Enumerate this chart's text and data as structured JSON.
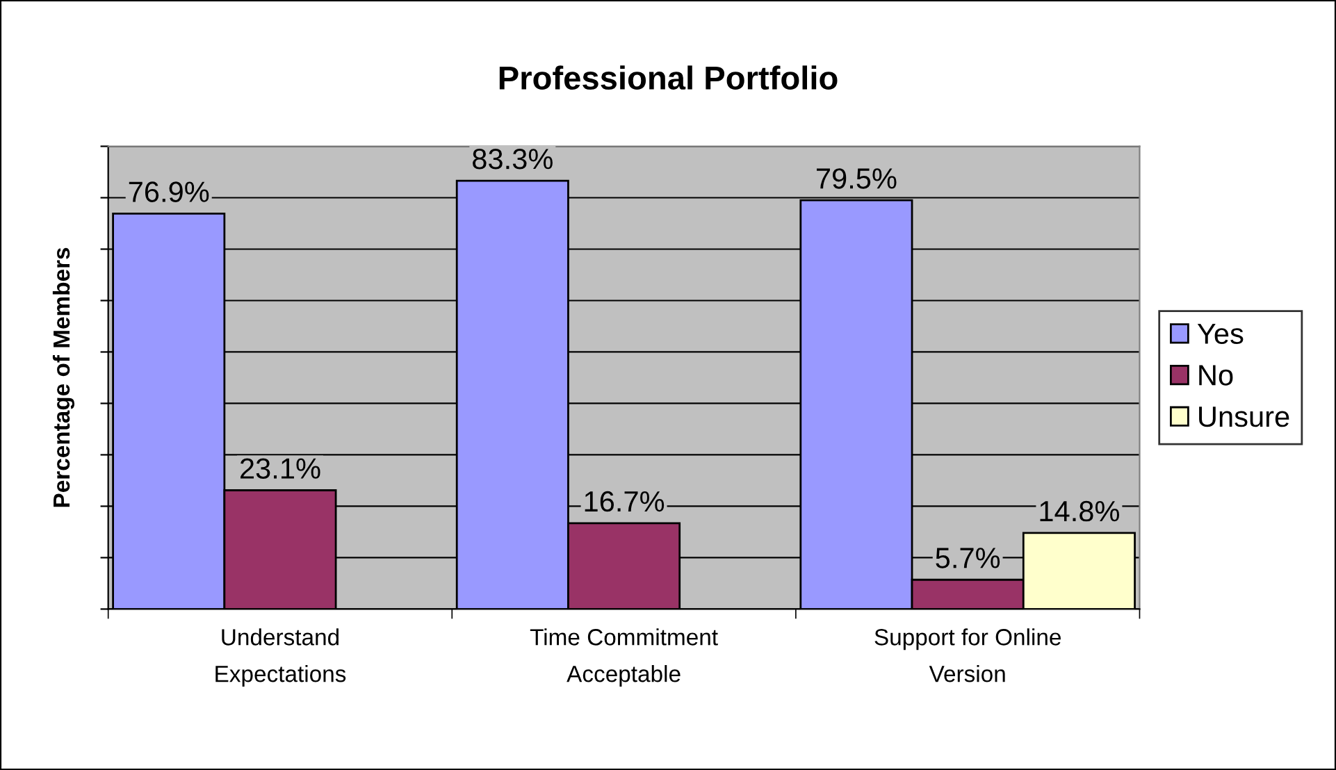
{
  "chart_data": {
    "type": "bar",
    "title": "Professional Portfolio",
    "ylabel": "Percentage of Members",
    "categories": [
      "Understand\nExpectations",
      "Time Commitment\nAcceptable",
      "Support for Online\nVersion"
    ],
    "series": [
      {
        "name": "Yes",
        "color": "#9999ff",
        "values": [
          76.9,
          83.3,
          79.5
        ],
        "value_labels": [
          "76.9%",
          "83.3%",
          "79.5%"
        ]
      },
      {
        "name": "No",
        "color": "#993366",
        "values": [
          23.1,
          16.7,
          5.7
        ],
        "value_labels": [
          "23.1%",
          "16.7%",
          "5.7%"
        ]
      },
      {
        "name": "Unsure",
        "color": "#ffffcc",
        "values": [
          null,
          null,
          14.8
        ],
        "value_labels": [
          null,
          null,
          "14.8%"
        ]
      }
    ],
    "ylim": [
      0,
      90
    ],
    "yticks": [
      {
        "value": 0,
        "label": null
      },
      {
        "value": 10,
        "label": null
      },
      {
        "value": 20,
        "label": null
      },
      {
        "value": 30,
        "label": null
      },
      {
        "value": 40,
        "label": null
      },
      {
        "value": 50,
        "label": null
      },
      {
        "value": 60,
        "label": null
      },
      {
        "value": 70,
        "label": null
      },
      {
        "value": 80,
        "label": null
      },
      {
        "value": 90,
        "label": null
      }
    ],
    "grid": "y",
    "legend": "right"
  }
}
